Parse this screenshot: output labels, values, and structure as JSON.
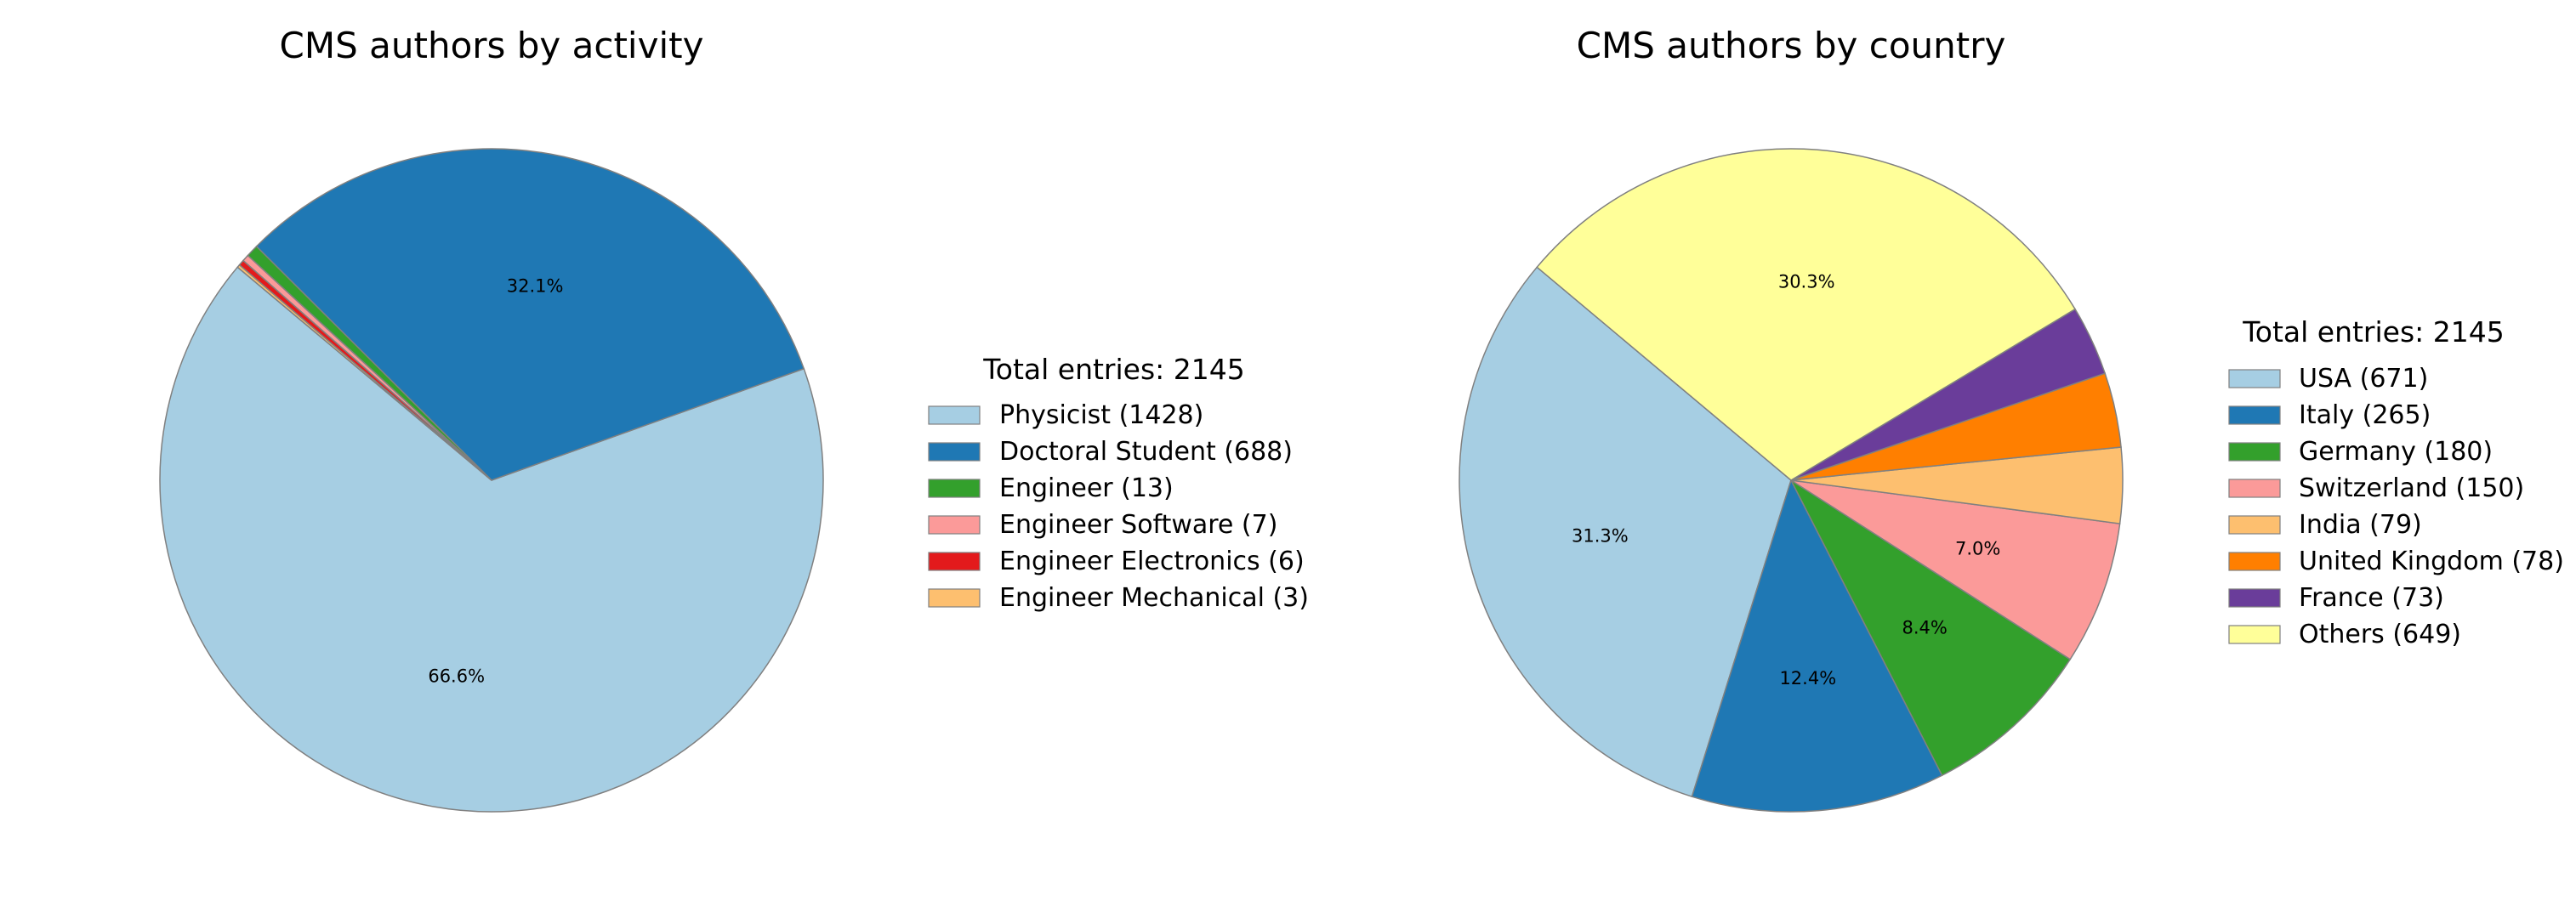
{
  "chart_data": [
    {
      "type": "pie",
      "title": "CMS authors by activity",
      "legend_title": "Total entries: 2145",
      "legend_placement": "right",
      "categories": [
        "Physicist (1428)",
        "Doctoral Student (688)",
        "Engineer (13)",
        "Engineer Software (7)",
        "Engineer Electronics (6)",
        "Engineer Mechanical (3)"
      ],
      "values": [
        1428,
        688,
        13,
        7,
        6,
        3
      ],
      "colors": [
        "#a6cee3",
        "#1f78b4",
        "#33a02c",
        "#fb9a99",
        "#e31a1c",
        "#fdbf6f"
      ],
      "percent_labels": [
        "66.6%",
        "32.1%",
        "",
        "",
        "",
        ""
      ],
      "start_angle_deg": 140,
      "edge_color": "#808080"
    },
    {
      "type": "pie",
      "title": "CMS authors by country",
      "legend_title": "Total entries: 2145",
      "legend_placement": "right",
      "categories": [
        "USA (671)",
        "Italy (265)",
        "Germany (180)",
        "Switzerland (150)",
        "India (79)",
        "United Kingdom (78)",
        "France (73)",
        "Others (649)"
      ],
      "values": [
        671,
        265,
        180,
        150,
        79,
        78,
        73,
        649
      ],
      "colors": [
        "#a6cee3",
        "#1f78b4",
        "#33a02c",
        "#fb9a99",
        "#fdbf6f",
        "#ff7f00",
        "#6a3d9a",
        "#ffff99"
      ],
      "percent_labels": [
        "31.3%",
        "12.4%",
        "8.4%",
        "7.0%",
        "",
        "",
        "",
        "30.3%"
      ],
      "start_angle_deg": 140,
      "edge_color": "#808080"
    }
  ]
}
